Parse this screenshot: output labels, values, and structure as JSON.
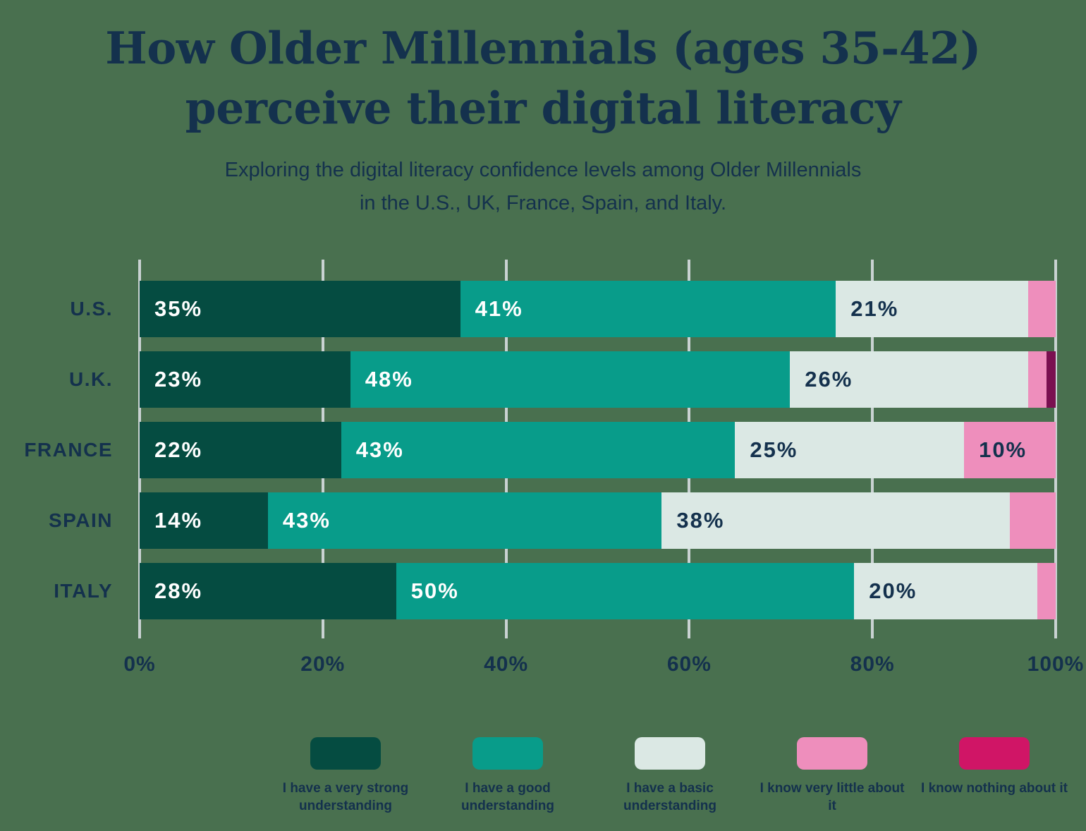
{
  "title": {
    "line1": "How Older Millennials (ages 35-42)",
    "line2": "perceive their digital literacy"
  },
  "subtitle": {
    "line1": "Exploring the digital literacy confidence levels among Older Millennials",
    "line2": "in the U.S., UK, France, Spain, and Italy."
  },
  "colors": {
    "background": "#49704F",
    "text_navy": "#14314D",
    "gridline": "#C9D2D2",
    "value_label_light": "#FFFFFF"
  },
  "chart_data": {
    "type": "bar",
    "orientation": "horizontal-stacked",
    "title": "How Older Millennials (ages 35-42) perceive their digital literacy",
    "categories": [
      "U.S.",
      "U.K.",
      "FRANCE",
      "SPAIN",
      "ITALY"
    ],
    "series": [
      {
        "name": "I have a very strong understanding",
        "color": "#054C41",
        "legend_color": "#054C41",
        "label_color": "#FFFFFF",
        "values": [
          35,
          23,
          22,
          14,
          28
        ]
      },
      {
        "name": "I have a good understanding",
        "color": "#089C8A",
        "legend_color": "#089C8A",
        "label_color": "#FFFFFF",
        "values": [
          41,
          48,
          43,
          43,
          50
        ]
      },
      {
        "name": "I have a basic understanding",
        "color": "#DBE8E4",
        "legend_color": "#DBE8E4",
        "label_color": "#14314D",
        "values": [
          21,
          26,
          25,
          38,
          20
        ]
      },
      {
        "name": "I know very little about it",
        "color": "#EE8EBC",
        "legend_color": "#EE8EBC",
        "label_color": "#14314D",
        "values": [
          3,
          2,
          10,
          5,
          2
        ]
      },
      {
        "name": "I know nothing about it",
        "color": "#7A1050",
        "legend_color": "#D01566",
        "label_color": "#FFFFFF",
        "values": [
          0,
          1,
          0,
          0,
          0
        ]
      }
    ],
    "x_ticks": [
      "0%",
      "20%",
      "40%",
      "60%",
      "80%",
      "100%"
    ],
    "xlim": [
      0,
      100
    ],
    "value_suffix": "%",
    "value_label_min": 10,
    "grid": true,
    "legend_position": "bottom"
  }
}
